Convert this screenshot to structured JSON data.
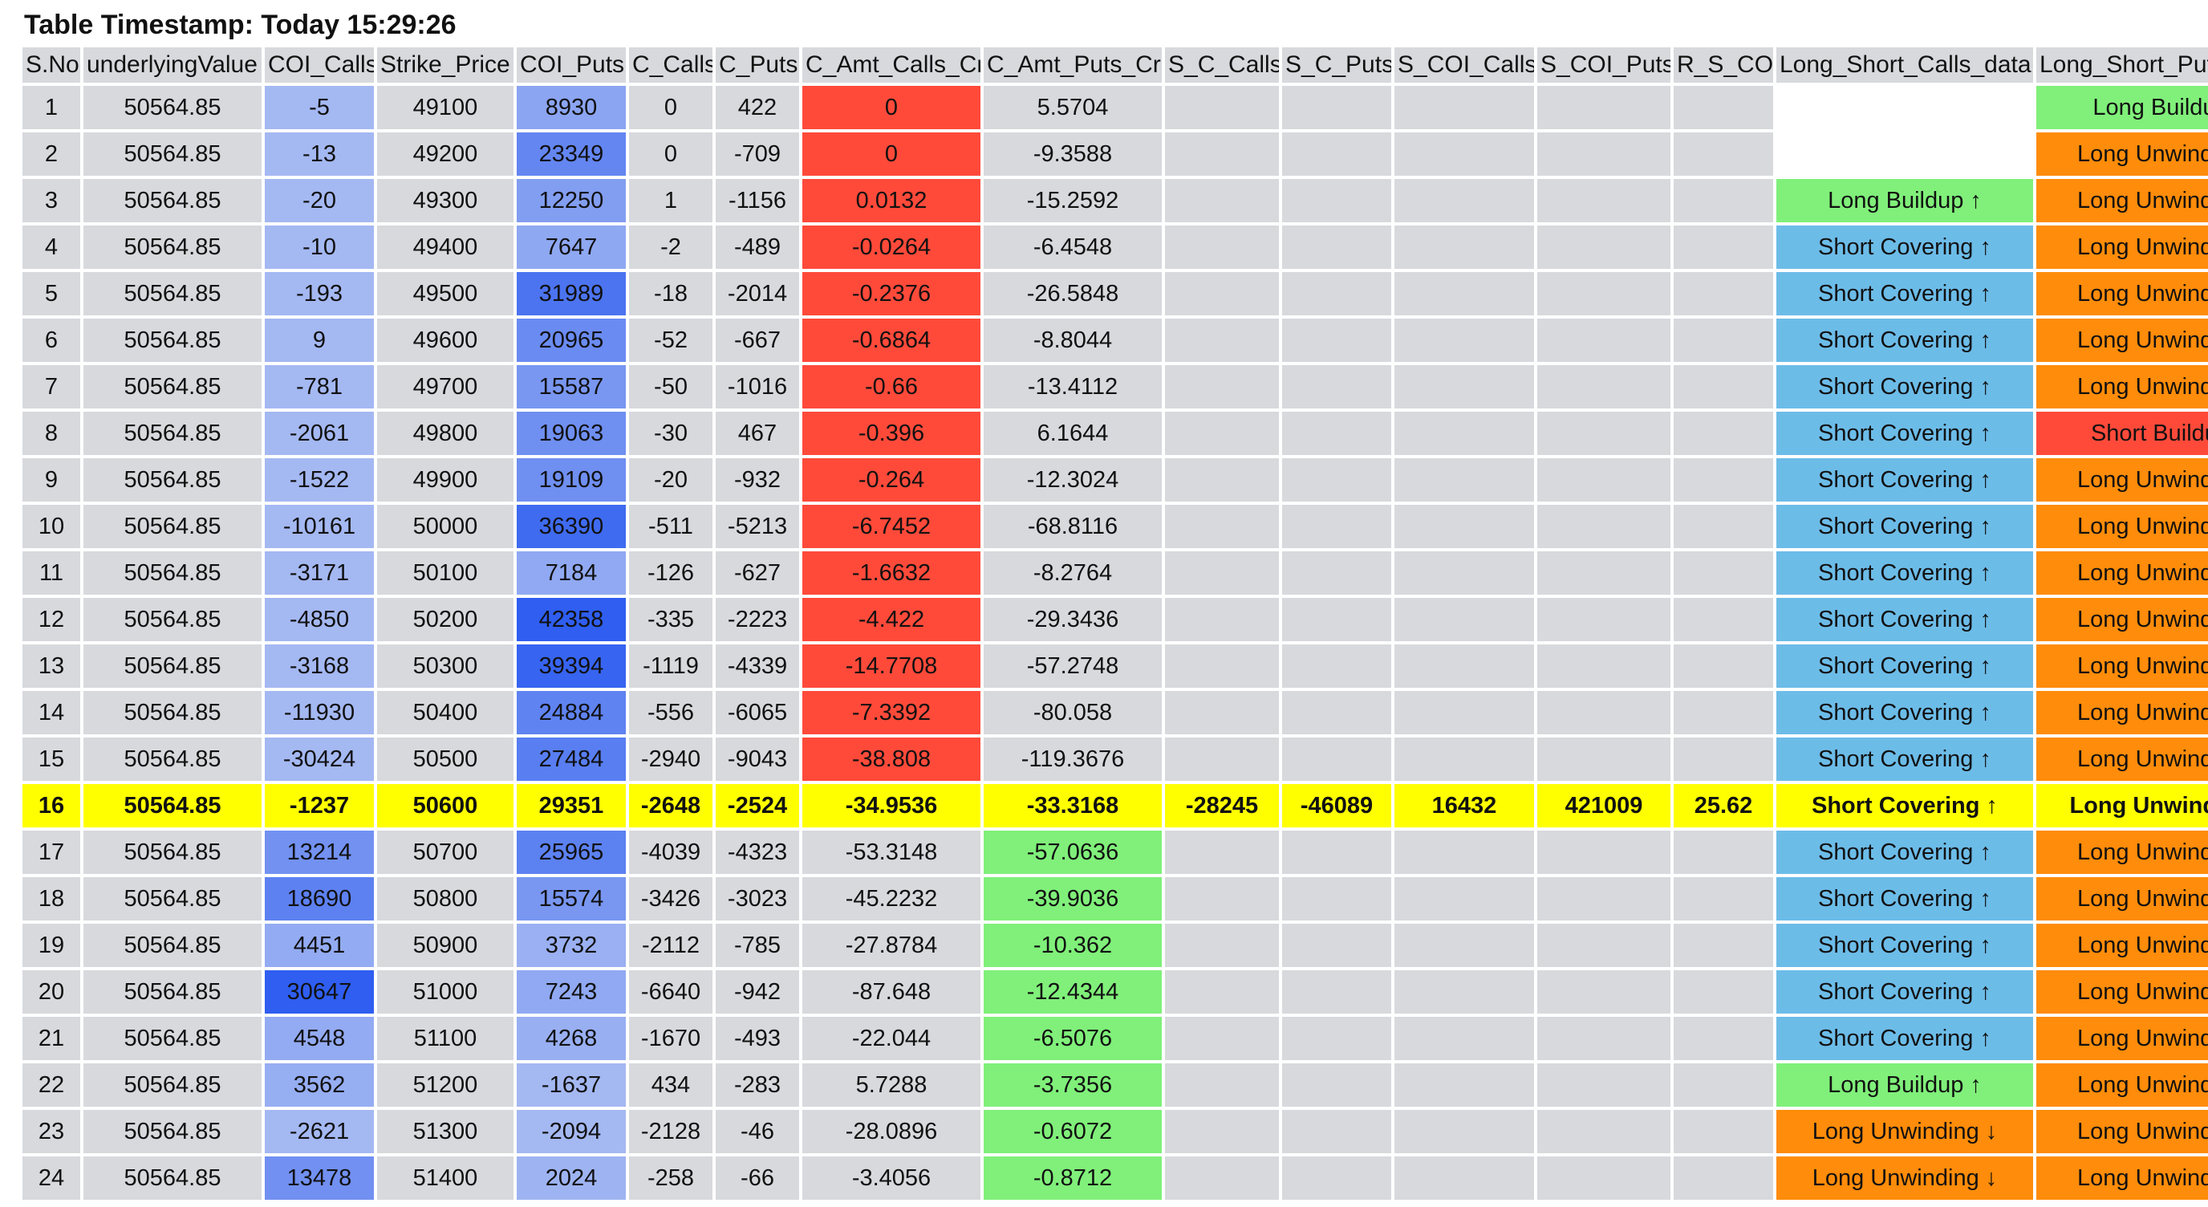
{
  "title": "Table Timestamp: Today 15:29:26",
  "colors": {
    "coi_light": "#a4b8f2",
    "coi_dark": "#2f5ef0",
    "red": "#ff4a3a",
    "green": "#80f07a",
    "highlight": "#ffff00",
    "long_buildup": "#80f07a",
    "short_covering": "#6cbce8",
    "long_unwinding": "#ff8c0a",
    "short_buildup": "#ff4a3a"
  },
  "columns": [
    "S.No",
    "underlyingValue",
    "COI_Calls",
    "Strike_Price",
    "COI_Puts",
    "C_Calls",
    "C_Puts",
    "C_Amt_Calls_Cr",
    "C_Amt_Puts_Cr",
    "S_C_Calls",
    "S_C_Puts",
    "S_COI_Calls",
    "S_COI_Puts",
    "R_S_COI",
    "Long_Short_Calls_data",
    "Long_Short_Puts_data"
  ],
  "rows": [
    [
      "1",
      "50564.85",
      "-5",
      "49100",
      "8930",
      "0",
      "422",
      "0",
      "5.5704",
      "",
      "",
      "",
      "",
      "",
      "",
      "Long Buildup"
    ],
    [
      "2",
      "50564.85",
      "-13",
      "49200",
      "23349",
      "0",
      "-709",
      "0",
      "-9.3588",
      "",
      "",
      "",
      "",
      "",
      "",
      "Long Unwinding"
    ],
    [
      "3",
      "50564.85",
      "-20",
      "49300",
      "12250",
      "1",
      "-1156",
      "0.0132",
      "-15.2592",
      "",
      "",
      "",
      "",
      "",
      "Long Buildup ↑",
      "Long Unwinding"
    ],
    [
      "4",
      "50564.85",
      "-10",
      "49400",
      "7647",
      "-2",
      "-489",
      "-0.0264",
      "-6.4548",
      "",
      "",
      "",
      "",
      "",
      "Short Covering ↑",
      "Long Unwinding"
    ],
    [
      "5",
      "50564.85",
      "-193",
      "49500",
      "31989",
      "-18",
      "-2014",
      "-0.2376",
      "-26.5848",
      "",
      "",
      "",
      "",
      "",
      "Short Covering ↑",
      "Long Unwinding"
    ],
    [
      "6",
      "50564.85",
      "9",
      "49600",
      "20965",
      "-52",
      "-667",
      "-0.6864",
      "-8.8044",
      "",
      "",
      "",
      "",
      "",
      "Short Covering ↑",
      "Long Unwinding"
    ],
    [
      "7",
      "50564.85",
      "-781",
      "49700",
      "15587",
      "-50",
      "-1016",
      "-0.66",
      "-13.4112",
      "",
      "",
      "",
      "",
      "",
      "Short Covering ↑",
      "Long Unwinding"
    ],
    [
      "8",
      "50564.85",
      "-2061",
      "49800",
      "19063",
      "-30",
      "467",
      "-0.396",
      "6.1644",
      "",
      "",
      "",
      "",
      "",
      "Short Covering ↑",
      "Short Buildup"
    ],
    [
      "9",
      "50564.85",
      "-1522",
      "49900",
      "19109",
      "-20",
      "-932",
      "-0.264",
      "-12.3024",
      "",
      "",
      "",
      "",
      "",
      "Short Covering ↑",
      "Long Unwinding"
    ],
    [
      "10",
      "50564.85",
      "-10161",
      "50000",
      "36390",
      "-511",
      "-5213",
      "-6.7452",
      "-68.8116",
      "",
      "",
      "",
      "",
      "",
      "Short Covering ↑",
      "Long Unwinding"
    ],
    [
      "11",
      "50564.85",
      "-3171",
      "50100",
      "7184",
      "-126",
      "-627",
      "-1.6632",
      "-8.2764",
      "",
      "",
      "",
      "",
      "",
      "Short Covering ↑",
      "Long Unwinding"
    ],
    [
      "12",
      "50564.85",
      "-4850",
      "50200",
      "42358",
      "-335",
      "-2223",
      "-4.422",
      "-29.3436",
      "",
      "",
      "",
      "",
      "",
      "Short Covering ↑",
      "Long Unwinding"
    ],
    [
      "13",
      "50564.85",
      "-3168",
      "50300",
      "39394",
      "-1119",
      "-4339",
      "-14.7708",
      "-57.2748",
      "",
      "",
      "",
      "",
      "",
      "Short Covering ↑",
      "Long Unwinding"
    ],
    [
      "14",
      "50564.85",
      "-11930",
      "50400",
      "24884",
      "-556",
      "-6065",
      "-7.3392",
      "-80.058",
      "",
      "",
      "",
      "",
      "",
      "Short Covering ↑",
      "Long Unwinding"
    ],
    [
      "15",
      "50564.85",
      "-30424",
      "50500",
      "27484",
      "-2940",
      "-9043",
      "-38.808",
      "-119.3676",
      "",
      "",
      "",
      "",
      "",
      "Short Covering ↑",
      "Long Unwinding"
    ],
    [
      "16",
      "50564.85",
      "-1237",
      "50600",
      "29351",
      "-2648",
      "-2524",
      "-34.9536",
      "-33.3168",
      "-28245",
      "-46089",
      "16432",
      "421009",
      "25.62",
      "Short Covering ↑",
      "Long Unwinding"
    ],
    [
      "17",
      "50564.85",
      "13214",
      "50700",
      "25965",
      "-4039",
      "-4323",
      "-53.3148",
      "-57.0636",
      "",
      "",
      "",
      "",
      "",
      "Short Covering ↑",
      "Long Unwinding"
    ],
    [
      "18",
      "50564.85",
      "18690",
      "50800",
      "15574",
      "-3426",
      "-3023",
      "-45.2232",
      "-39.9036",
      "",
      "",
      "",
      "",
      "",
      "Short Covering ↑",
      "Long Unwinding"
    ],
    [
      "19",
      "50564.85",
      "4451",
      "50900",
      "3732",
      "-2112",
      "-785",
      "-27.8784",
      "-10.362",
      "",
      "",
      "",
      "",
      "",
      "Short Covering ↑",
      "Long Unwinding"
    ],
    [
      "20",
      "50564.85",
      "30647",
      "51000",
      "7243",
      "-6640",
      "-942",
      "-87.648",
      "-12.4344",
      "",
      "",
      "",
      "",
      "",
      "Short Covering ↑",
      "Long Unwinding"
    ],
    [
      "21",
      "50564.85",
      "4548",
      "51100",
      "4268",
      "-1670",
      "-493",
      "-22.044",
      "-6.5076",
      "",
      "",
      "",
      "",
      "",
      "Short Covering ↑",
      "Long Unwinding"
    ],
    [
      "22",
      "50564.85",
      "3562",
      "51200",
      "-1637",
      "434",
      "-283",
      "5.7288",
      "-3.7356",
      "",
      "",
      "",
      "",
      "",
      "Long Buildup ↑",
      "Long Unwinding"
    ],
    [
      "23",
      "50564.85",
      "-2621",
      "51300",
      "-2094",
      "-2128",
      "-46",
      "-28.0896",
      "-0.6072",
      "",
      "",
      "",
      "",
      "",
      "Long Unwinding ↓",
      "Long Unwinding"
    ],
    [
      "24",
      "50564.85",
      "13478",
      "51400",
      "2024",
      "-258",
      "-66",
      "-3.4056",
      "-0.8712",
      "",
      "",
      "",
      "",
      "",
      "Long Unwinding ↓",
      "Long Unwinding"
    ]
  ],
  "highlight_row": "16"
}
